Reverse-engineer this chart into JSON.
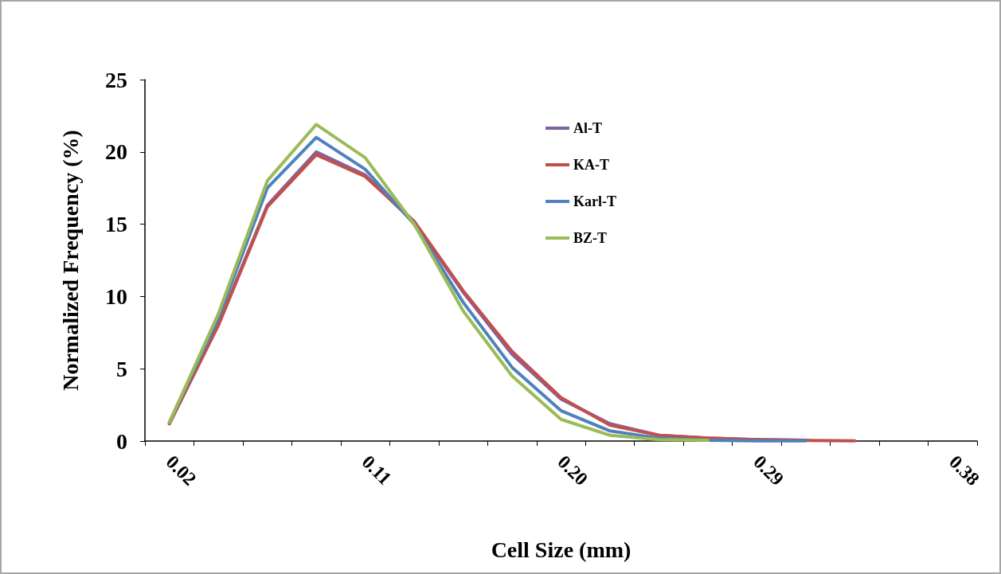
{
  "chart_data": {
    "type": "line",
    "xlabel": "Cell Size (mm)",
    "ylabel": "Normalized Frequency (%)",
    "categories": [
      "0.02",
      null,
      null,
      null,
      "0.11",
      null,
      null,
      null,
      "0.20",
      null,
      null,
      null,
      "0.29",
      null,
      null,
      null,
      "0.38"
    ],
    "ylim": [
      0,
      25
    ],
    "yticks": [
      0,
      5,
      10,
      15,
      20,
      25
    ],
    "grid": false,
    "legend": "top right",
    "marker": "none",
    "line_style": "solid",
    "series": [
      {
        "name": "Al-T",
        "color": "#8064a2",
        "values": [
          1.2,
          8.1,
          16.3,
          20.0,
          18.4,
          15.1,
          10.3,
          6.0,
          2.9,
          1.2,
          0.4,
          0.2,
          0.1,
          0.05,
          null,
          null,
          null
        ]
      },
      {
        "name": "KA-T",
        "color": "#c0504d",
        "values": [
          1.2,
          8.0,
          16.2,
          19.8,
          18.3,
          15.2,
          10.4,
          6.2,
          3.0,
          1.1,
          0.4,
          0.2,
          0.1,
          0.05,
          0.02,
          null,
          null
        ]
      },
      {
        "name": "Karl-T",
        "color": "#4f81bd",
        "values": [
          1.3,
          8.5,
          17.5,
          21.0,
          18.8,
          15.0,
          9.6,
          5.1,
          2.1,
          0.7,
          0.2,
          0.05,
          0.02,
          0.01,
          null,
          null,
          null
        ]
      },
      {
        "name": "BZ-T",
        "color": "#9bbb59",
        "values": [
          1.3,
          8.8,
          18.0,
          21.9,
          19.6,
          15.0,
          9.0,
          4.5,
          1.5,
          0.4,
          0.1,
          0.05,
          null,
          null,
          null,
          null,
          null
        ]
      }
    ]
  }
}
